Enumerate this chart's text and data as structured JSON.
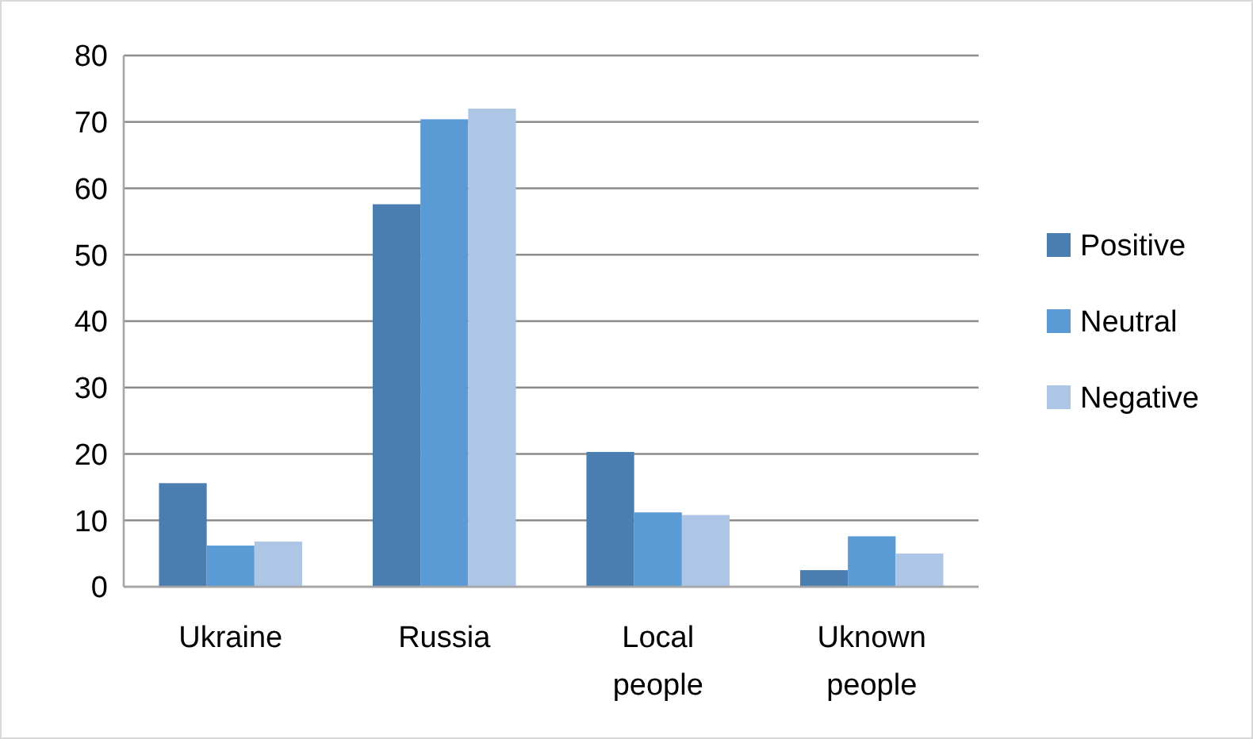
{
  "chart_data": {
    "type": "bar",
    "categories": [
      "Ukraine",
      "Russia",
      "Local people",
      "Uknown people"
    ],
    "series": [
      {
        "name": "Positive",
        "color": "#4a7eb0",
        "values": [
          15.6,
          57.6,
          20.3,
          2.5
        ]
      },
      {
        "name": "Neutral",
        "color": "#5b9bd5",
        "values": [
          6.2,
          70.4,
          11.2,
          7.6
        ]
      },
      {
        "name": "Negative",
        "color": "#adc6e5",
        "values": [
          6.8,
          72.0,
          10.8,
          5.0
        ]
      }
    ],
    "ylim": [
      0,
      80
    ],
    "yticks": [
      0,
      10,
      20,
      30,
      40,
      50,
      60,
      70,
      80
    ],
    "grid": "y",
    "legend": "right"
  }
}
